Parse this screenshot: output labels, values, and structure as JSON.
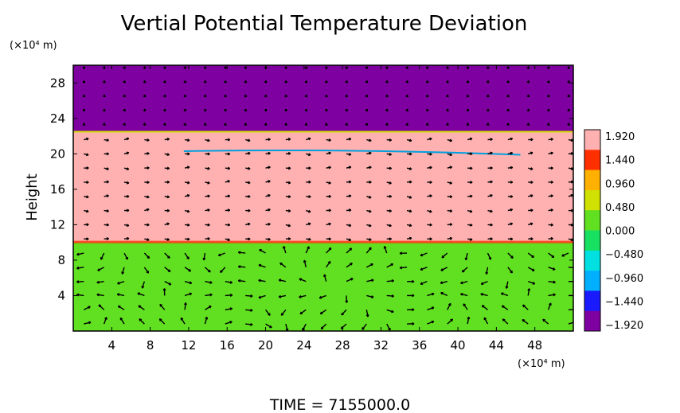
{
  "chart_data": {
    "type": "heatmap",
    "title": "Vertial Potential Temperature Deviation",
    "ylabel": "Height",
    "y_unit": "(×10⁴ m)",
    "x_unit": "(×10⁴ m)",
    "xlim": [
      0,
      52
    ],
    "ylim": [
      0,
      30
    ],
    "x_ticks": [
      "4",
      "8",
      "12",
      "16",
      "20",
      "24",
      "28",
      "32",
      "36",
      "40",
      "44",
      "48"
    ],
    "y_ticks": [
      "4",
      "8",
      "12",
      "16",
      "20",
      "24",
      "28"
    ],
    "x_tick_values": [
      4,
      8,
      12,
      16,
      20,
      24,
      28,
      32,
      36,
      40,
      44,
      48
    ],
    "y_tick_values": [
      4,
      8,
      12,
      16,
      20,
      24,
      28
    ],
    "layers": [
      {
        "from": 0,
        "to": 10,
        "value": 0.1
      },
      {
        "from": 10,
        "to": 22.5,
        "value": 1.92
      },
      {
        "from": 22.5,
        "to": 30,
        "value": -1.92
      }
    ],
    "colorbar": {
      "labels": [
        "1.920",
        "1.440",
        "0.960",
        "0.480",
        "0.000",
        "−0.480",
        "−0.960",
        "−1.440",
        "−1.920"
      ],
      "colors": [
        "#7f00a0",
        "#1a1aff",
        "#00b0ff",
        "#00e0e0",
        "#18e060",
        "#60e020",
        "#d0e000",
        "#ffb000",
        "#ff3000",
        "#ffb0b0"
      ]
    },
    "vectors": "wind vectors overlaid",
    "footer": "TIME  =  7155000.0"
  }
}
